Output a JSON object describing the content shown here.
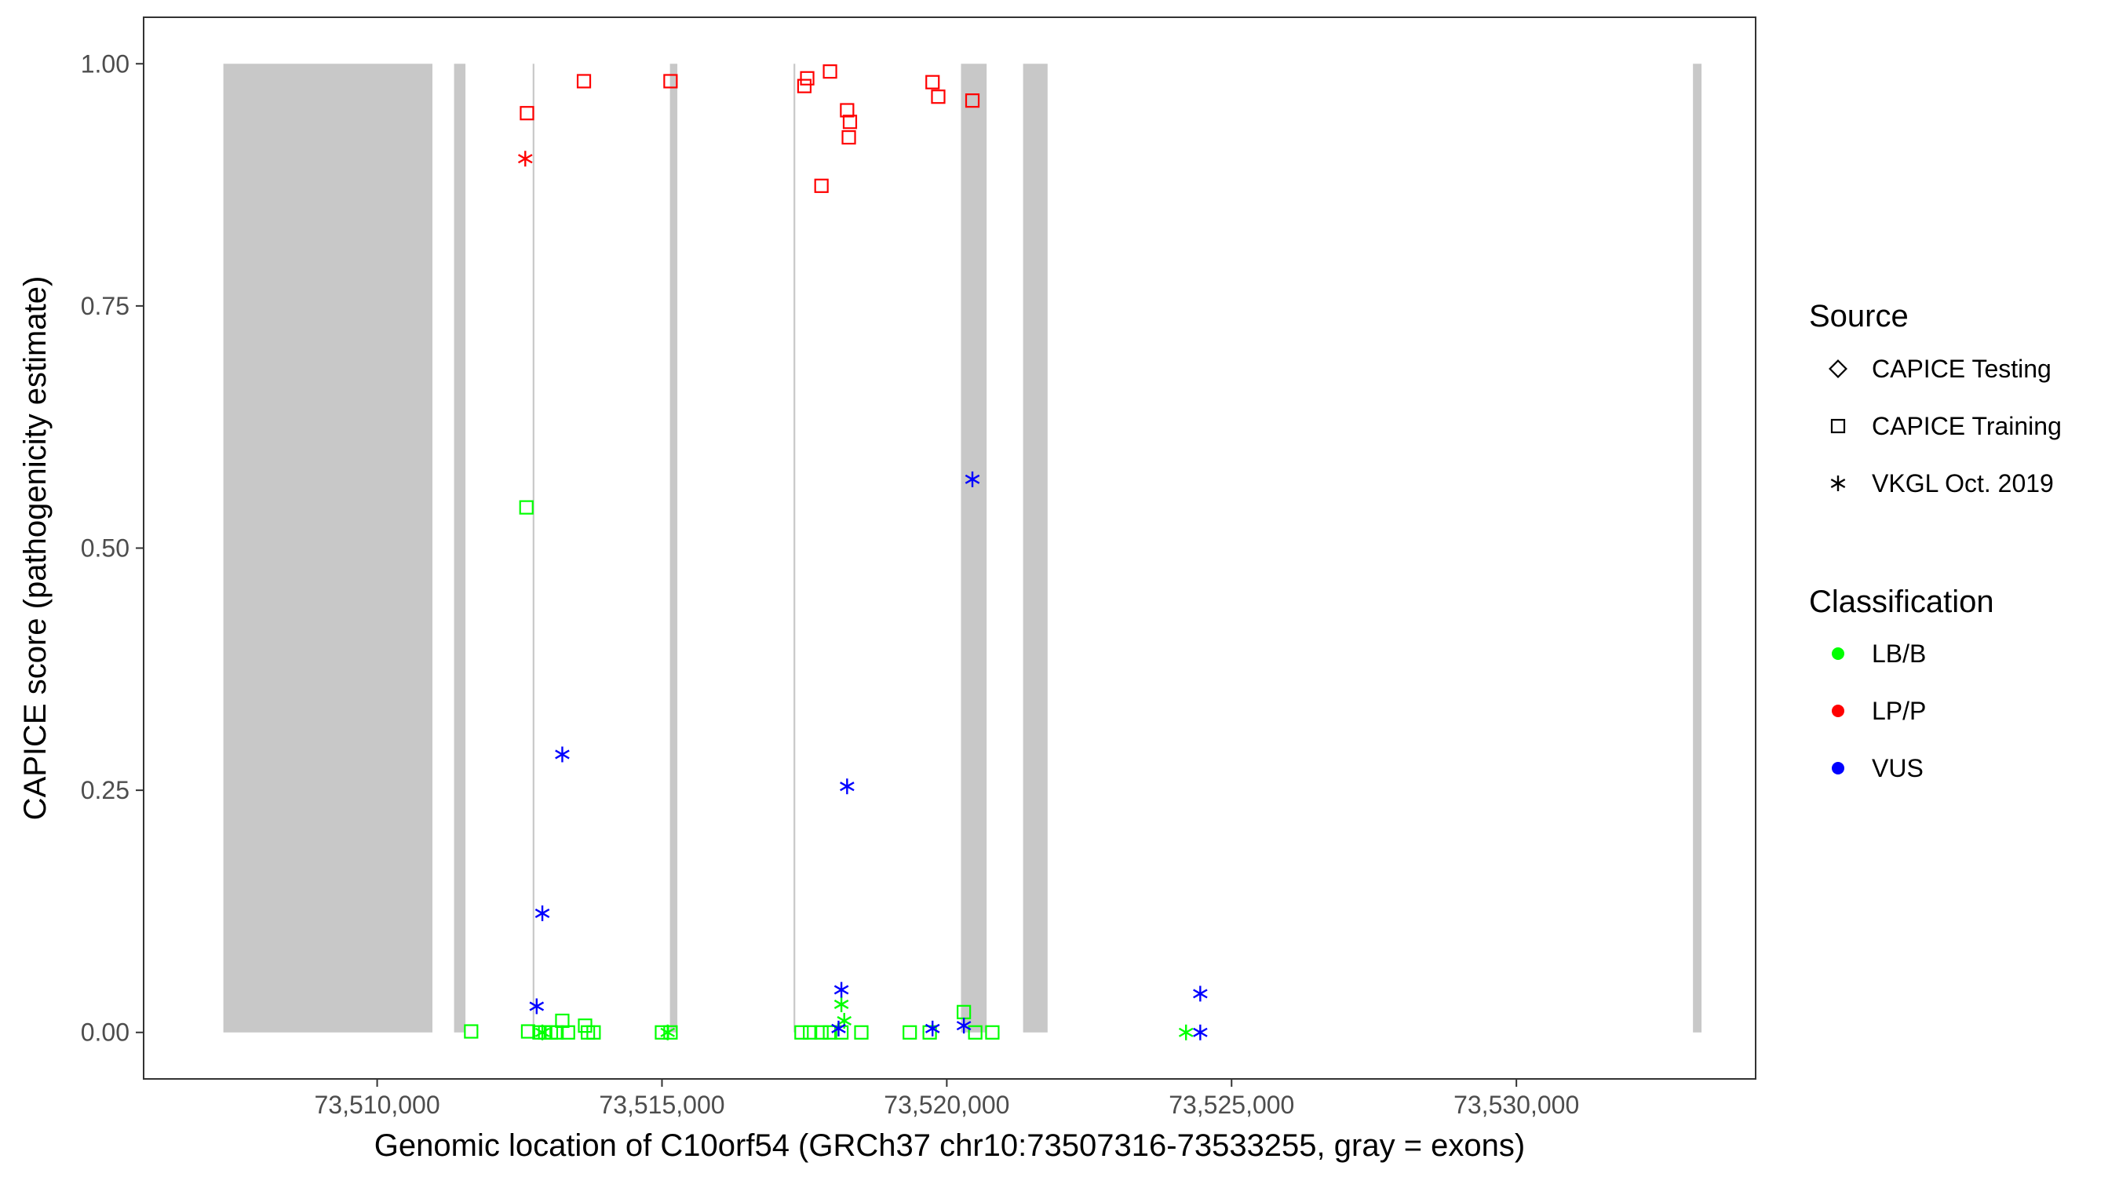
{
  "colors": {
    "LB/B": "#00ff00",
    "LP/P": "#ff0000",
    "VUS": "#0000ff",
    "exon": "#c8c8c8",
    "axis": "#000000",
    "tick_label": "#4d4d4d"
  },
  "legend": {
    "source_title": "Source",
    "source_items": [
      {
        "label": "CAPICE Testing",
        "shape": "diamond"
      },
      {
        "label": "CAPICE Training",
        "shape": "square"
      },
      {
        "label": "VKGL Oct. 2019",
        "shape": "asterisk"
      }
    ],
    "class_title": "Classification",
    "class_items": [
      {
        "label": "LB/B",
        "key": "LB/B"
      },
      {
        "label": "LP/P",
        "key": "LP/P"
      },
      {
        "label": "VUS",
        "key": "VUS"
      }
    ]
  },
  "chart_data": {
    "type": "scatter",
    "title": "",
    "xlabel": "Genomic location of C10orf54 (GRCh37 chr10:73507316-73533255, gray = exons)",
    "ylabel": "CAPICE score (pathogenicity estimate)",
    "xlim": [
      73505900,
      73534200
    ],
    "ylim": [
      -0.048,
      1.048
    ],
    "xticks": [
      {
        "value": 73510000,
        "label": "73,510,000"
      },
      {
        "value": 73515000,
        "label": "73,515,000"
      },
      {
        "value": 73520000,
        "label": "73,520,000"
      },
      {
        "value": 73525000,
        "label": "73,525,000"
      },
      {
        "value": 73530000,
        "label": "73,530,000"
      }
    ],
    "yticks": [
      {
        "value": 0,
        "label": "0.00"
      },
      {
        "value": 0.25,
        "label": "0.25"
      },
      {
        "value": 0.5,
        "label": "0.50"
      },
      {
        "value": 0.75,
        "label": "0.75"
      },
      {
        "value": 1.0,
        "label": "1.00"
      }
    ],
    "grid": false,
    "legend_position": "right",
    "exons": [
      {
        "start": 73507300,
        "end": 73510970
      },
      {
        "start": 73511350,
        "end": 73511550
      },
      {
        "start": 73512730,
        "end": 73512760
      },
      {
        "start": 73515140,
        "end": 73515270
      },
      {
        "start": 73517310,
        "end": 73517340
      },
      {
        "start": 73520250,
        "end": 73520700
      },
      {
        "start": 73521340,
        "end": 73521770
      },
      {
        "start": 73533100,
        "end": 73533250
      }
    ],
    "points": [
      {
        "x": 73512630,
        "y": 0.949,
        "class": "LP/P",
        "source": "CAPICE Training"
      },
      {
        "x": 73513630,
        "y": 0.982,
        "class": "LP/P",
        "source": "CAPICE Training"
      },
      {
        "x": 73515150,
        "y": 0.982,
        "class": "LP/P",
        "source": "CAPICE Training"
      },
      {
        "x": 73517500,
        "y": 0.977,
        "class": "LP/P",
        "source": "CAPICE Training"
      },
      {
        "x": 73517550,
        "y": 0.985,
        "class": "LP/P",
        "source": "CAPICE Training"
      },
      {
        "x": 73517950,
        "y": 0.992,
        "class": "LP/P",
        "source": "CAPICE Training"
      },
      {
        "x": 73517800,
        "y": 0.874,
        "class": "LP/P",
        "source": "CAPICE Training"
      },
      {
        "x": 73518250,
        "y": 0.952,
        "class": "LP/P",
        "source": "CAPICE Training"
      },
      {
        "x": 73518300,
        "y": 0.94,
        "class": "LP/P",
        "source": "CAPICE Training"
      },
      {
        "x": 73518280,
        "y": 0.924,
        "class": "LP/P",
        "source": "CAPICE Training"
      },
      {
        "x": 73519750,
        "y": 0.981,
        "class": "LP/P",
        "source": "CAPICE Training"
      },
      {
        "x": 73519850,
        "y": 0.966,
        "class": "LP/P",
        "source": "CAPICE Training"
      },
      {
        "x": 73520450,
        "y": 0.962,
        "class": "LP/P",
        "source": "CAPICE Training"
      },
      {
        "x": 73512600,
        "y": 0.902,
        "class": "LP/P",
        "source": "VKGL Oct. 2019"
      },
      {
        "x": 73512620,
        "y": 0.542,
        "class": "LB/B",
        "source": "CAPICE Training"
      },
      {
        "x": 73511650,
        "y": 0.001,
        "class": "LB/B",
        "source": "CAPICE Training"
      },
      {
        "x": 73512650,
        "y": 0.001,
        "class": "LB/B",
        "source": "CAPICE Training"
      },
      {
        "x": 73512850,
        "y": 0.0,
        "class": "LB/B",
        "source": "CAPICE Training"
      },
      {
        "x": 73512950,
        "y": 0.0,
        "class": "LB/B",
        "source": "CAPICE Training"
      },
      {
        "x": 73513050,
        "y": 0.0,
        "class": "LB/B",
        "source": "CAPICE Training"
      },
      {
        "x": 73513150,
        "y": 0.0,
        "class": "LB/B",
        "source": "CAPICE Training"
      },
      {
        "x": 73513250,
        "y": 0.012,
        "class": "LB/B",
        "source": "CAPICE Training"
      },
      {
        "x": 73513350,
        "y": 0.0,
        "class": "LB/B",
        "source": "CAPICE Training"
      },
      {
        "x": 73513650,
        "y": 0.007,
        "class": "LB/B",
        "source": "CAPICE Training"
      },
      {
        "x": 73513700,
        "y": 0.0,
        "class": "LB/B",
        "source": "CAPICE Training"
      },
      {
        "x": 73513800,
        "y": 0.0,
        "class": "LB/B",
        "source": "CAPICE Training"
      },
      {
        "x": 73515000,
        "y": 0.0,
        "class": "LB/B",
        "source": "CAPICE Training"
      },
      {
        "x": 73515150,
        "y": 0.0,
        "class": "LB/B",
        "source": "CAPICE Training"
      },
      {
        "x": 73517450,
        "y": 0.0,
        "class": "LB/B",
        "source": "CAPICE Training"
      },
      {
        "x": 73517600,
        "y": 0.0,
        "class": "LB/B",
        "source": "CAPICE Training"
      },
      {
        "x": 73517800,
        "y": 0.0,
        "class": "LB/B",
        "source": "CAPICE Training"
      },
      {
        "x": 73517950,
        "y": 0.0,
        "class": "LB/B",
        "source": "CAPICE Training"
      },
      {
        "x": 73518150,
        "y": 0.0,
        "class": "LB/B",
        "source": "CAPICE Training"
      },
      {
        "x": 73518500,
        "y": 0.0,
        "class": "LB/B",
        "source": "CAPICE Training"
      },
      {
        "x": 73519350,
        "y": 0.0,
        "class": "LB/B",
        "source": "CAPICE Training"
      },
      {
        "x": 73519700,
        "y": 0.0,
        "class": "LB/B",
        "source": "CAPICE Training"
      },
      {
        "x": 73520300,
        "y": 0.021,
        "class": "LB/B",
        "source": "CAPICE Training"
      },
      {
        "x": 73520500,
        "y": 0.0,
        "class": "LB/B",
        "source": "CAPICE Training"
      },
      {
        "x": 73520800,
        "y": 0.0,
        "class": "LB/B",
        "source": "CAPICE Training"
      },
      {
        "x": 73518150,
        "y": 0.029,
        "class": "LB/B",
        "source": "VKGL Oct. 2019"
      },
      {
        "x": 73518200,
        "y": 0.012,
        "class": "LB/B",
        "source": "VKGL Oct. 2019"
      },
      {
        "x": 73515100,
        "y": 0.0,
        "class": "LB/B",
        "source": "VKGL Oct. 2019"
      },
      {
        "x": 73512900,
        "y": 0.0,
        "class": "LB/B",
        "source": "VKGL Oct. 2019"
      },
      {
        "x": 73524200,
        "y": 0.0,
        "class": "LB/B",
        "source": "VKGL Oct. 2019"
      },
      {
        "x": 73520450,
        "y": 0.571,
        "class": "VUS",
        "source": "VKGL Oct. 2019"
      },
      {
        "x": 73513250,
        "y": 0.287,
        "class": "VUS",
        "source": "VKGL Oct. 2019"
      },
      {
        "x": 73518250,
        "y": 0.254,
        "class": "VUS",
        "source": "VKGL Oct. 2019"
      },
      {
        "x": 73512900,
        "y": 0.123,
        "class": "VUS",
        "source": "VKGL Oct. 2019"
      },
      {
        "x": 73512800,
        "y": 0.027,
        "class": "VUS",
        "source": "VKGL Oct. 2019"
      },
      {
        "x": 73518150,
        "y": 0.044,
        "class": "VUS",
        "source": "VKGL Oct. 2019"
      },
      {
        "x": 73518100,
        "y": 0.004,
        "class": "VUS",
        "source": "VKGL Oct. 2019"
      },
      {
        "x": 73519750,
        "y": 0.004,
        "class": "VUS",
        "source": "VKGL Oct. 2019"
      },
      {
        "x": 73520300,
        "y": 0.007,
        "class": "VUS",
        "source": "VKGL Oct. 2019"
      },
      {
        "x": 73524450,
        "y": 0.04,
        "class": "VUS",
        "source": "VKGL Oct. 2019"
      },
      {
        "x": 73524450,
        "y": 0.0,
        "class": "VUS",
        "source": "VKGL Oct. 2019"
      }
    ]
  }
}
